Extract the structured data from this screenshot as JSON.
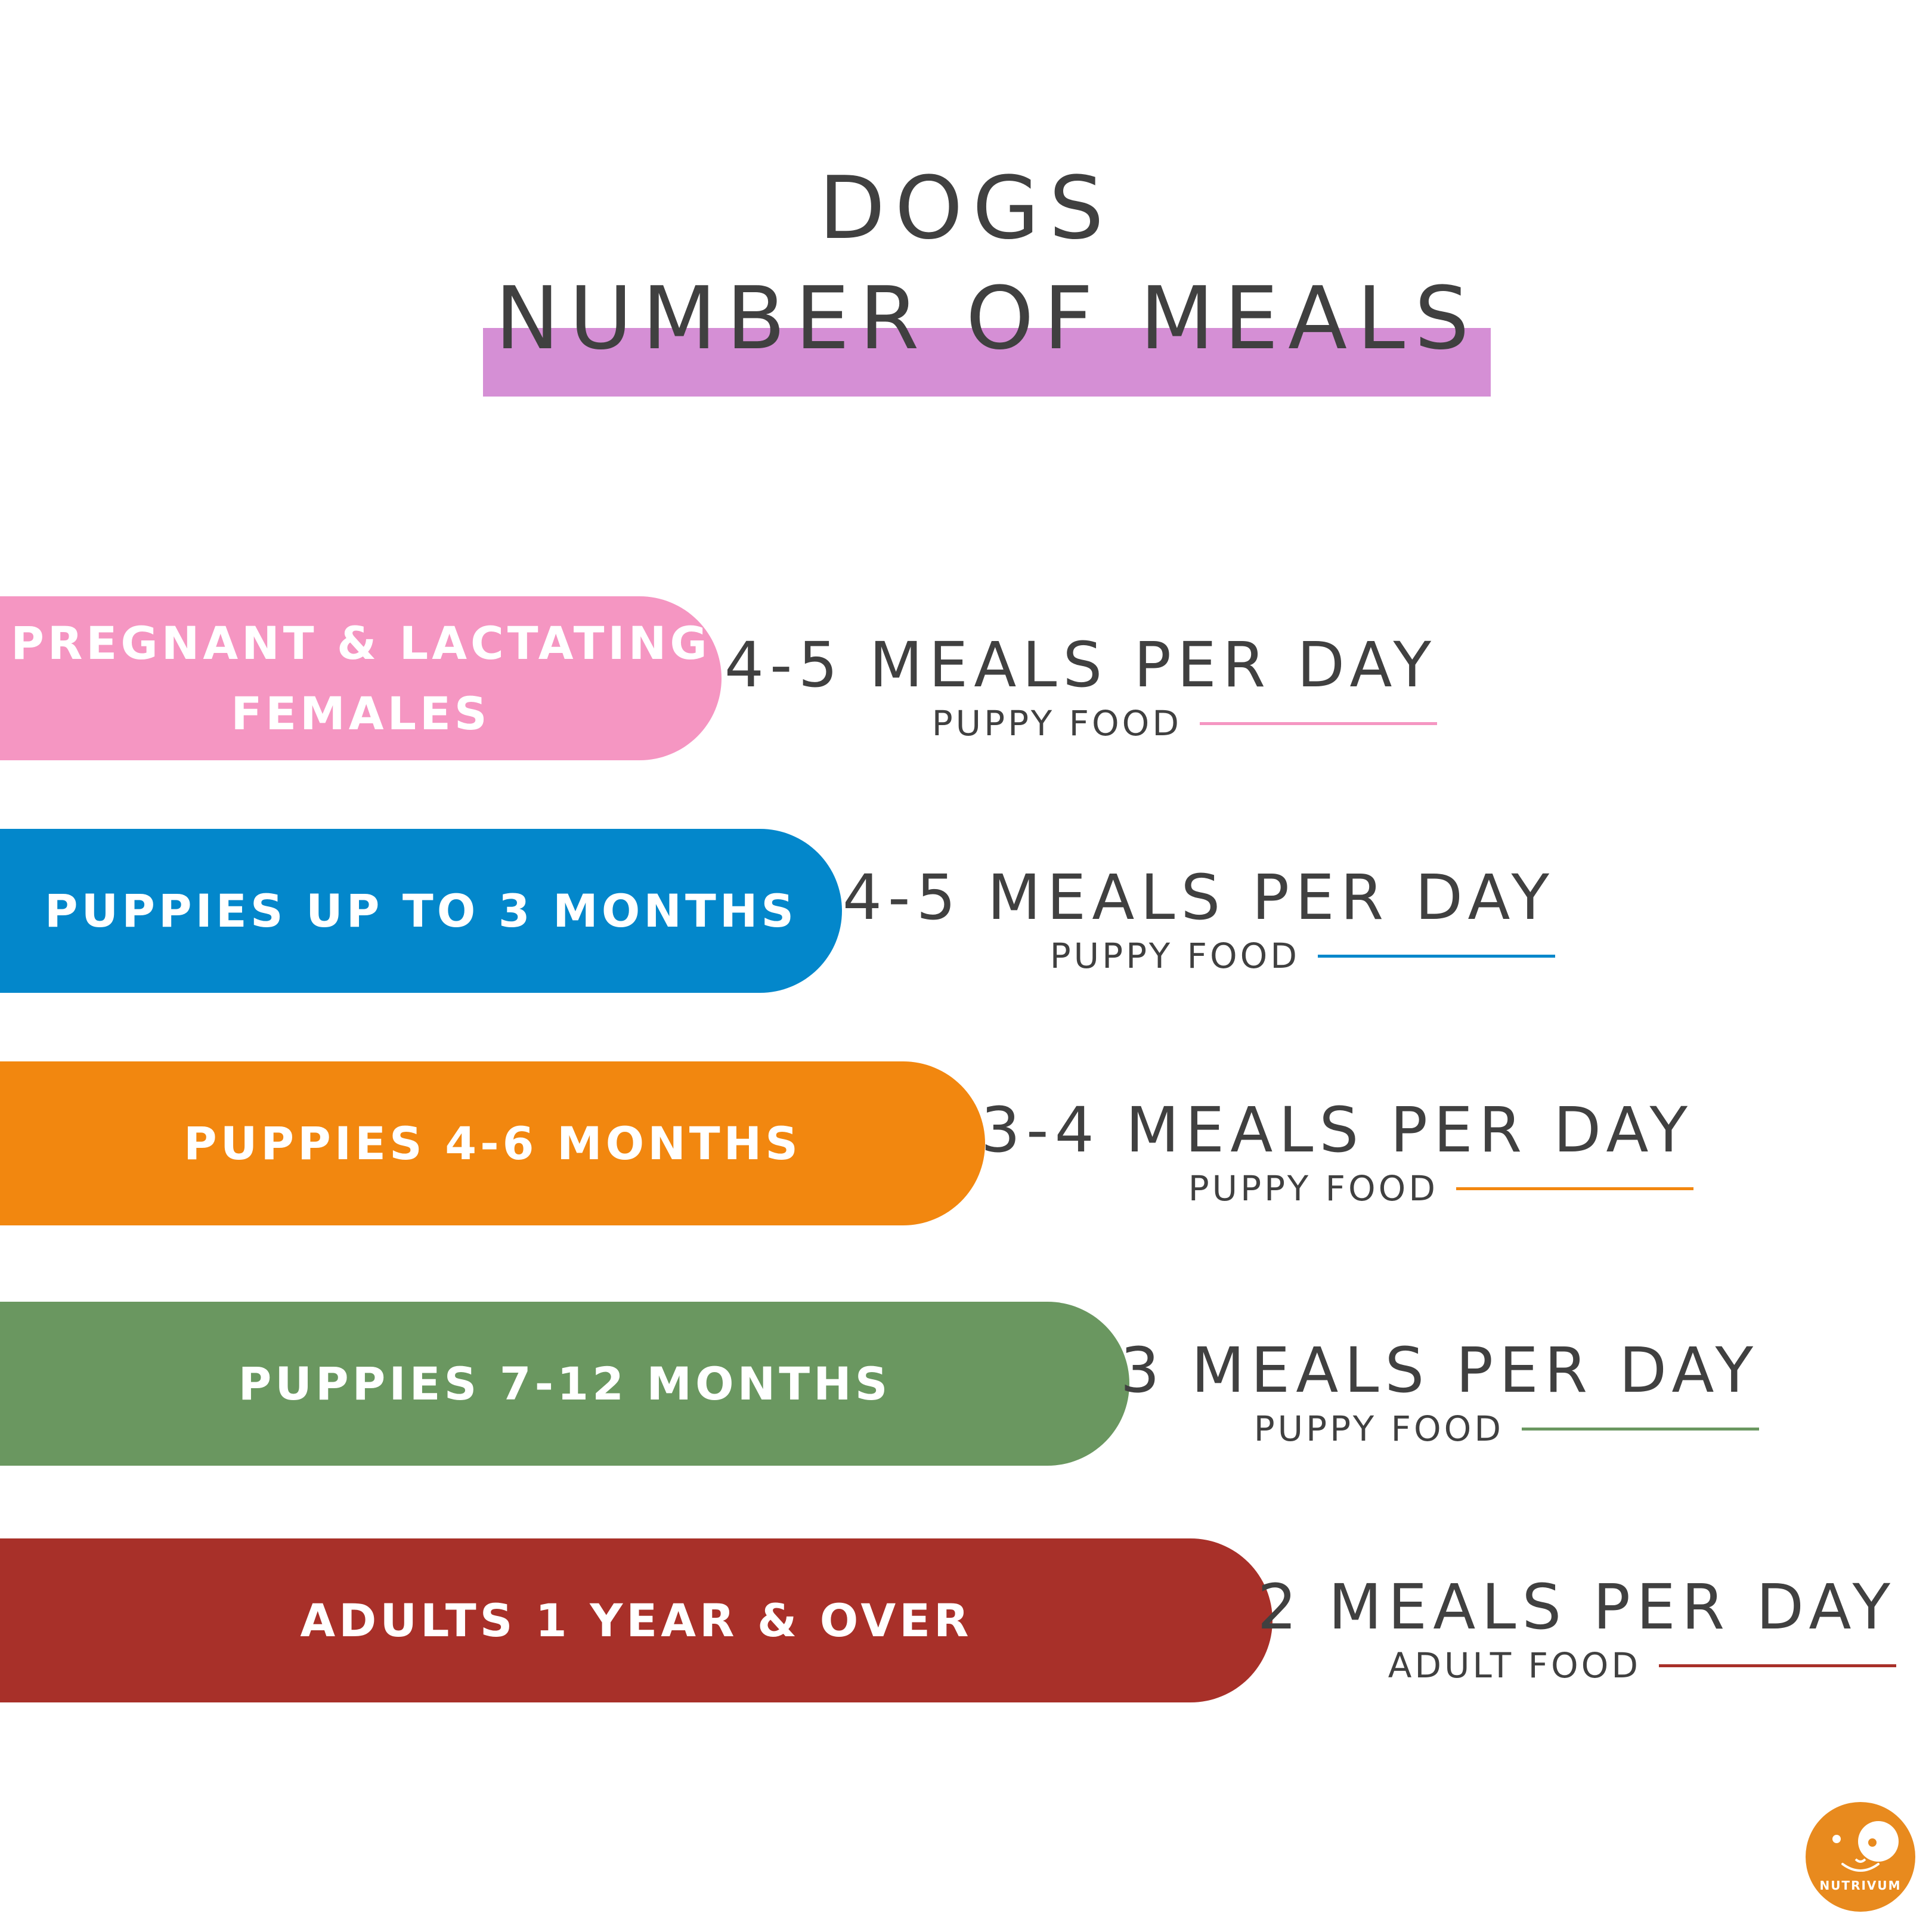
{
  "header": {
    "title_line1": "DOGS",
    "title_line2": "NUMBER OF MEALS"
  },
  "rows": [
    {
      "label": "PREGNANT & LACTATING\nFEMALES",
      "meals": "4-5 MEALS PER DAY",
      "food": "PUPPY FOOD",
      "color": "#f596c2"
    },
    {
      "label": "PUPPIES UP TO 3 MONTHS",
      "meals": "4-5 MEALS PER DAY",
      "food": "PUPPY FOOD",
      "color": "#0387cb"
    },
    {
      "label": "PUPPIES 4-6 MONTHS",
      "meals": "3-4 MEALS PER DAY",
      "food": "PUPPY FOOD",
      "color": "#f2870f"
    },
    {
      "label": "PUPPIES 7-12 MONTHS",
      "meals": "3 MEALS PER DAY",
      "food": "PUPPY FOOD",
      "color": "#6a9760"
    },
    {
      "label": "ADULTS 1 YEAR & OVER",
      "meals": "2 MEALS PER DAY",
      "food": "ADULT FOOD",
      "color": "#a83029"
    }
  ],
  "logo": {
    "text": "NUTRIVUM",
    "icon": "dog-face-icon",
    "color": "#e88a1e"
  },
  "colors": {
    "title_highlight": "#d58fd5",
    "text": "#404040"
  }
}
